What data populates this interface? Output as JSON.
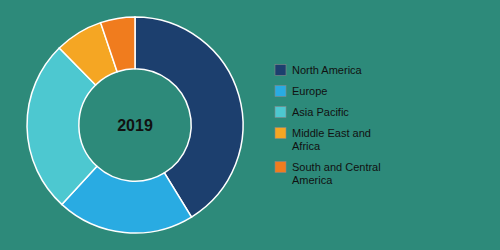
{
  "chart_data": {
    "type": "pie",
    "categories": [
      "North America",
      "Europe",
      "Asia Pacific",
      "Middle East and\nAfrica",
      "South and Central\nAmerica"
    ],
    "values": [
      40,
      20,
      25,
      7,
      5
    ],
    "colors": [
      "#1c3f6e",
      "#29abe2",
      "#4dc8d0",
      "#f5a623",
      "#f07c1e"
    ],
    "annotations": [
      "2019"
    ],
    "legend": "right"
  }
}
